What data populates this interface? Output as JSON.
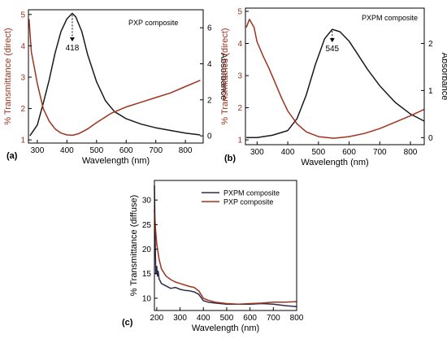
{
  "figure": {
    "panels": [
      {
        "tag": "(a)",
        "annotation_label": "PXP composite",
        "peak_label": "418"
      },
      {
        "tag": "(b)",
        "annotation_label": "PXPM composite",
        "peak_label": "545"
      },
      {
        "tag": "(c)"
      }
    ]
  },
  "colors": {
    "black_series": "#1a1a1a",
    "red_series": "#a0321e",
    "red_axis": "#a0321e",
    "navy_series": "#2b2d4a"
  },
  "chart_data": [
    {
      "type": "line",
      "title": "",
      "xlabel": "Wavelength (nm)",
      "ylabel": "% Transmittance (direct)",
      "ylabel_right": "Absorbance",
      "xlim": [
        270,
        860
      ],
      "ylim": [
        0.9,
        5.15
      ],
      "ylim_right": [
        -0.4,
        7.0
      ],
      "x_ticks": [
        300,
        400,
        500,
        600,
        700,
        800
      ],
      "y_ticks": [
        1,
        2,
        3,
        4,
        5
      ],
      "y_ticks_right": [
        0,
        2,
        4,
        6
      ],
      "grid": false,
      "series": [
        {
          "axis": "right",
          "color": "#1a1a1a",
          "x": [
            275,
            300,
            320,
            340,
            360,
            380,
            400,
            418,
            430,
            450,
            470,
            500,
            530,
            560,
            600,
            650,
            700,
            750,
            800,
            850
          ],
          "values": [
            0.0,
            0.6,
            1.8,
            3.1,
            4.6,
            5.8,
            6.5,
            6.8,
            6.6,
            5.8,
            4.5,
            3.0,
            1.95,
            1.35,
            0.95,
            0.65,
            0.45,
            0.3,
            0.15,
            0.05
          ]
        },
        {
          "axis": "left",
          "color": "#a0321e",
          "x": [
            272,
            280,
            290,
            300,
            320,
            340,
            360,
            380,
            400,
            420,
            440,
            470,
            500,
            550,
            600,
            650,
            700,
            750,
            800,
            850
          ],
          "values": [
            4.85,
            3.8,
            3.3,
            2.8,
            2.0,
            1.6,
            1.35,
            1.22,
            1.16,
            1.15,
            1.2,
            1.35,
            1.55,
            1.85,
            2.05,
            2.2,
            2.35,
            2.5,
            2.7,
            2.9
          ]
        }
      ]
    },
    {
      "type": "line",
      "title": "",
      "xlabel": "Wavelength (nm)",
      "ylabel": "% Transmittance (direct)",
      "ylabel_right": "Absorbance",
      "xlim": [
        262,
        845
      ],
      "ylim": [
        0.85,
        5.1
      ],
      "ylim_right": [
        -0.15,
        2.75
      ],
      "x_ticks": [
        300,
        400,
        500,
        600,
        700,
        800
      ],
      "y_ticks": [
        1,
        2,
        3,
        4,
        5
      ],
      "y_ticks_right": [
        0,
        1,
        2
      ],
      "grid": false,
      "series": [
        {
          "axis": "right",
          "color": "#1a1a1a",
          "x": [
            265,
            300,
            350,
            400,
            430,
            460,
            490,
            520,
            545,
            570,
            600,
            630,
            660,
            700,
            750,
            800,
            845
          ],
          "values": [
            0.0,
            0.0,
            0.05,
            0.15,
            0.4,
            0.9,
            1.55,
            2.1,
            2.3,
            2.25,
            2.05,
            1.75,
            1.45,
            1.1,
            0.75,
            0.5,
            0.35
          ]
        },
        {
          "axis": "left",
          "color": "#a0321e",
          "x": [
            265,
            275,
            290,
            300,
            320,
            340,
            360,
            380,
            400,
            430,
            460,
            500,
            550,
            600,
            650,
            700,
            750,
            800,
            845
          ],
          "values": [
            4.5,
            4.75,
            4.5,
            4.05,
            3.6,
            3.2,
            2.75,
            2.3,
            1.9,
            1.5,
            1.25,
            1.1,
            1.05,
            1.1,
            1.2,
            1.35,
            1.55,
            1.75,
            1.95
          ]
        }
      ]
    },
    {
      "type": "line",
      "title": "",
      "xlabel": "Wavelength (nm)",
      "ylabel": "% Transmittance (diffuse)",
      "xlim": [
        190,
        800
      ],
      "ylim": [
        7.5,
        34
      ],
      "x_ticks": [
        200,
        300,
        400,
        500,
        600,
        700,
        800
      ],
      "y_ticks": [
        10,
        15,
        20,
        25,
        30
      ],
      "grid": false,
      "legend": "top-right",
      "series": [
        {
          "name": "PXPM composite",
          "color": "#2b2d4a",
          "x": [
            190,
            193,
            196,
            200,
            203,
            206,
            210,
            220,
            240,
            260,
            280,
            300,
            320,
            340,
            360,
            380,
            400,
            420,
            450,
            500,
            550,
            600,
            650,
            700,
            750,
            800
          ],
          "values": [
            33,
            22,
            15,
            16.5,
            14.5,
            15.5,
            14,
            13,
            12.5,
            12,
            12.2,
            11.8,
            11.6,
            11.5,
            11.3,
            10.8,
            9.5,
            9.2,
            9.0,
            8.8,
            8.8,
            8.8,
            8.9,
            8.8,
            8.5,
            8.3
          ]
        },
        {
          "name": "PXP composite",
          "color": "#a0321e",
          "x": [
            190,
            195,
            200,
            210,
            220,
            240,
            260,
            280,
            300,
            320,
            340,
            360,
            380,
            400,
            420,
            450,
            500,
            550,
            600,
            650,
            700,
            750,
            800
          ],
          "values": [
            28,
            24,
            21,
            18,
            16,
            14.5,
            13.8,
            13.3,
            13,
            12.7,
            12.4,
            12.2,
            11.5,
            10.0,
            9.6,
            9.2,
            8.9,
            8.8,
            8.9,
            9.0,
            9.2,
            9.2,
            9.3
          ]
        }
      ]
    }
  ]
}
